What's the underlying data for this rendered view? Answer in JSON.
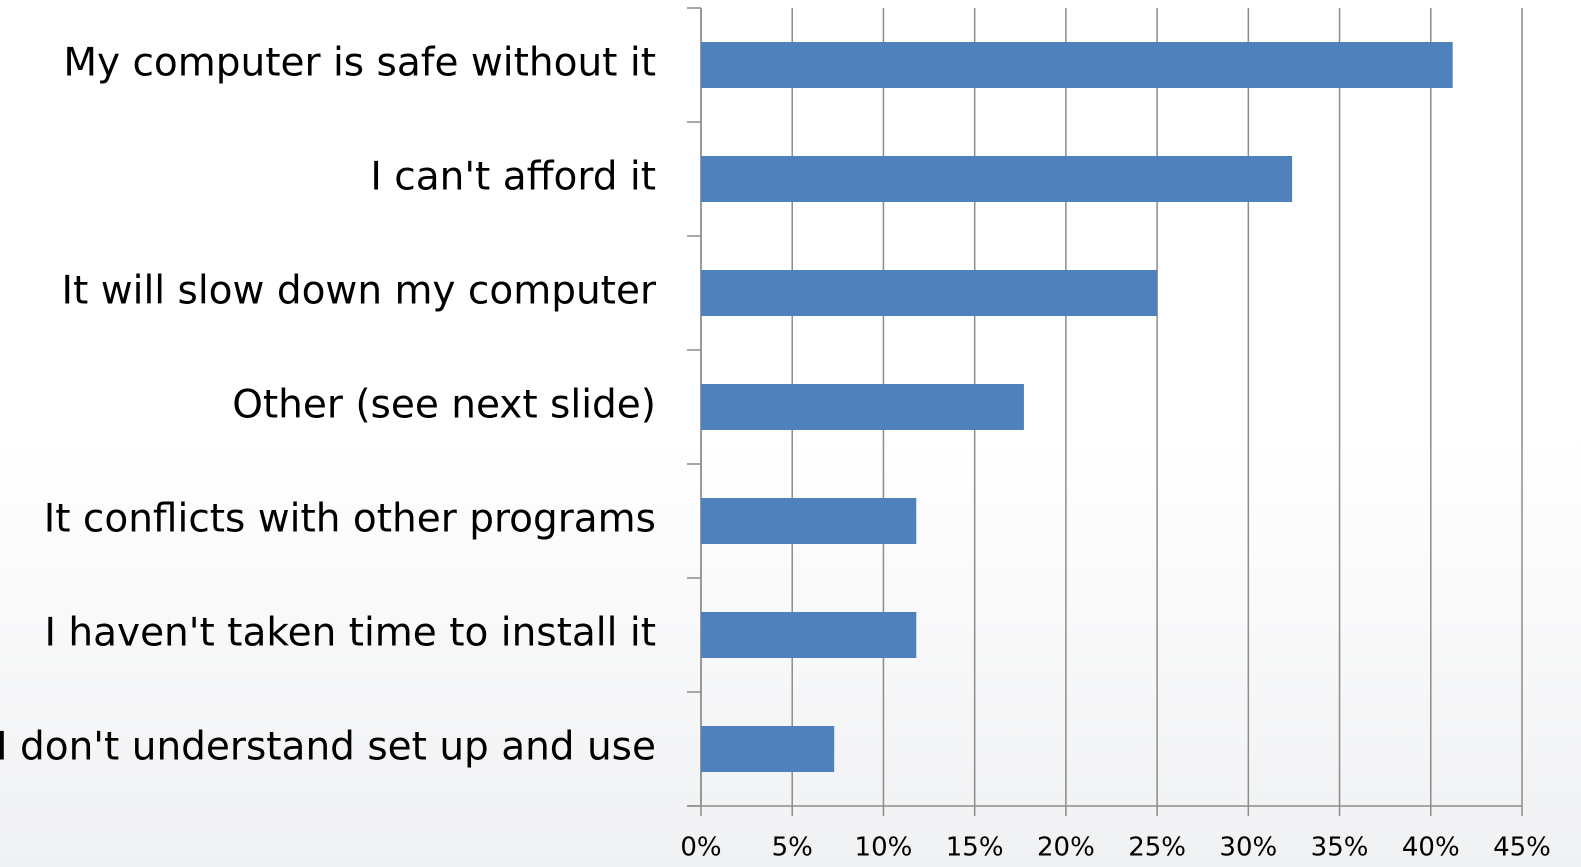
{
  "chart_data": {
    "type": "barh",
    "categories": [
      "My computer is safe without it",
      "I can't afford it",
      "It will slow down my computer",
      "Other (see next slide)",
      "It conflicts with other programs",
      "I haven't taken time to install it",
      "I don't understand set up and use"
    ],
    "values": [
      41.2,
      32.4,
      25,
      17.7,
      11.8,
      11.8,
      7.3
    ],
    "color": "#4f81bd",
    "xlim": [
      0,
      45
    ],
    "xticks": [
      {
        "value": 0,
        "label": "0%"
      },
      {
        "value": 5,
        "label": "5%"
      },
      {
        "value": 10,
        "label": "10%"
      },
      {
        "value": 15,
        "label": "15%"
      },
      {
        "value": 20,
        "label": "20%"
      },
      {
        "value": 25,
        "label": "25%"
      },
      {
        "value": 30,
        "label": "30%"
      },
      {
        "value": 35,
        "label": "35%"
      },
      {
        "value": 40,
        "label": "40%"
      },
      {
        "value": 45,
        "label": "45%"
      }
    ],
    "grid": true
  }
}
